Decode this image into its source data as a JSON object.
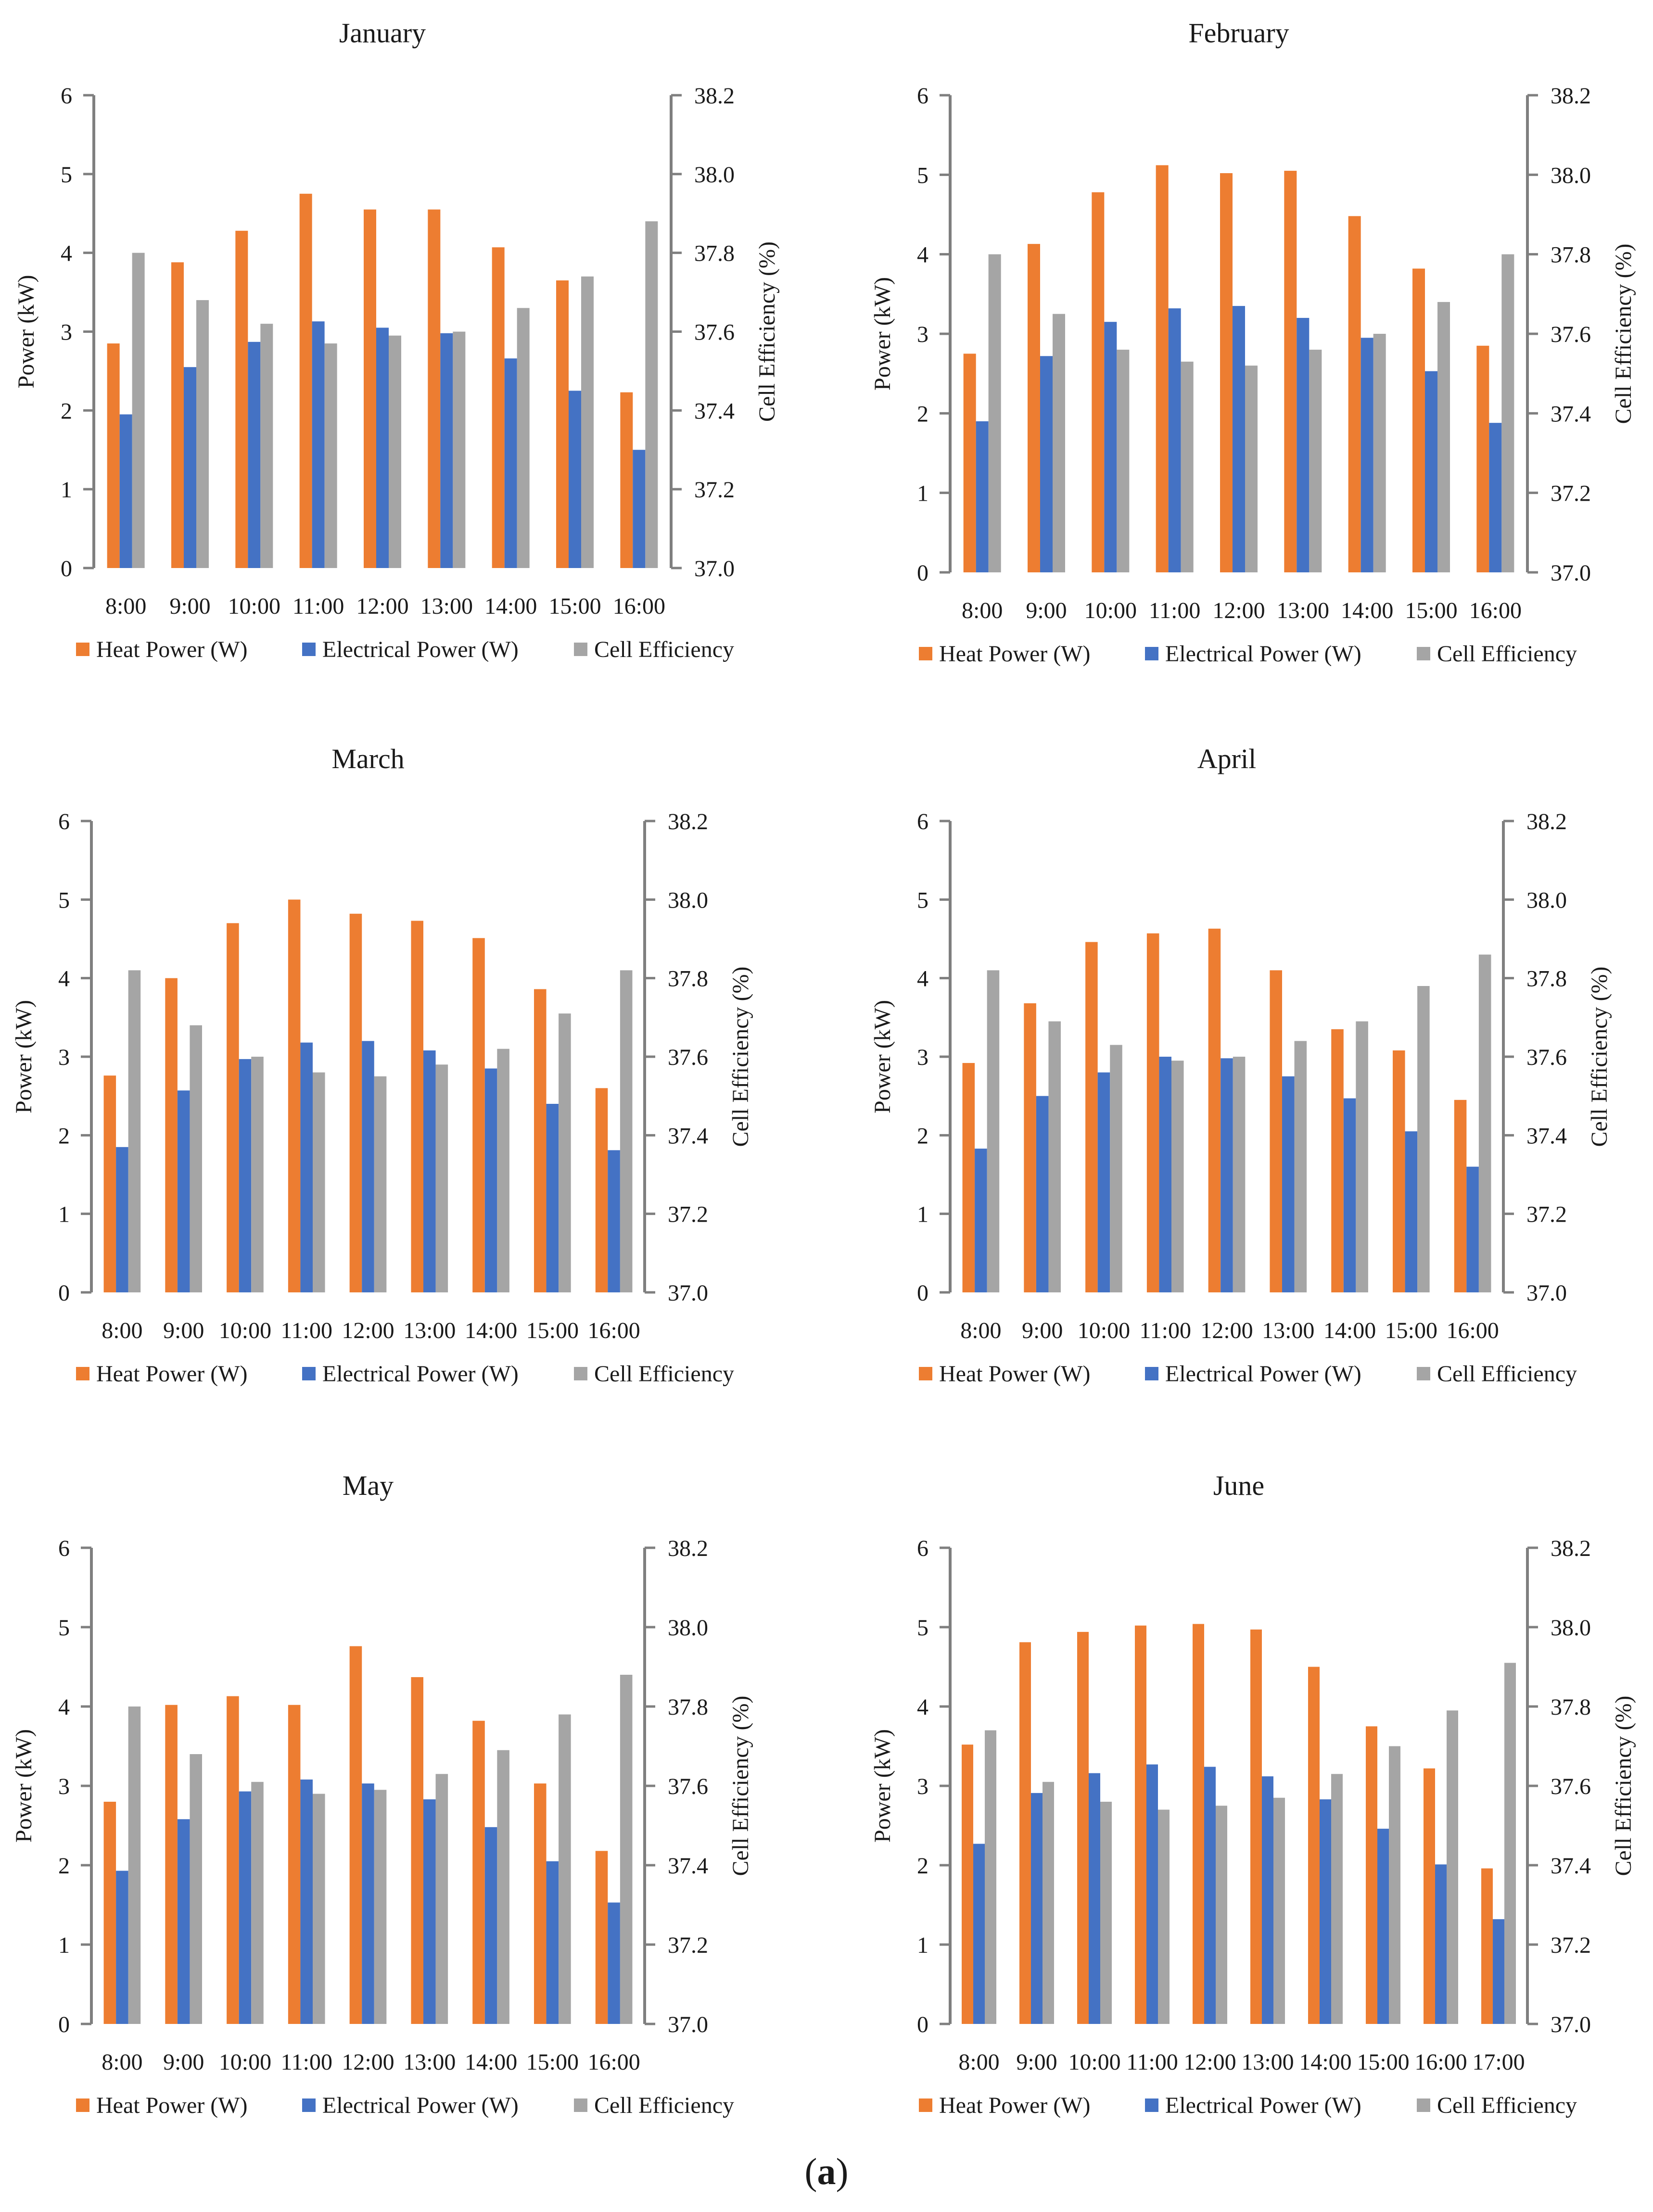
{
  "figure_label": "a",
  "colors": {
    "heat": "#ED7D31",
    "electrical": "#4472C4",
    "efficiency": "#A5A5A5",
    "axis": "#7f7f7f"
  },
  "chart_data": [
    {
      "type": "bar",
      "title": "January",
      "categories": [
        "8:00",
        "9:00",
        "10:00",
        "11:00",
        "12:00",
        "13:00",
        "14:00",
        "15:00",
        "16:00"
      ],
      "series": [
        {
          "name": "Heat  Power (W)",
          "axis": "left",
          "values": [
            2.85,
            3.88,
            4.28,
            4.75,
            4.55,
            4.55,
            4.07,
            3.65,
            2.23
          ]
        },
        {
          "name": "Electrical  Power (W)",
          "axis": "left",
          "values": [
            1.95,
            2.55,
            2.87,
            3.13,
            3.05,
            2.98,
            2.66,
            2.25,
            1.5
          ]
        },
        {
          "name": "Cell Efficiency",
          "axis": "right",
          "values": [
            37.8,
            37.68,
            37.62,
            37.57,
            37.59,
            37.6,
            37.66,
            37.74,
            37.88
          ]
        }
      ],
      "ylabel": "Power (kW)",
      "y2label": "Cell Efficiency (%)",
      "ylim": [
        0,
        6
      ],
      "y2lim": [
        37.0,
        38.2
      ],
      "yticks": [
        "0",
        "1",
        "2",
        "3",
        "4",
        "5",
        "6"
      ],
      "y2ticks": [
        "37.0",
        "37.2",
        "37.4",
        "37.6",
        "37.8",
        "38.0",
        "38.2"
      ]
    },
    {
      "type": "bar",
      "title": "February",
      "categories": [
        "8:00",
        "9:00",
        "10:00",
        "11:00",
        "12:00",
        "13:00",
        "14:00",
        "15:00",
        "16:00"
      ],
      "series": [
        {
          "name": "Heat  Power (W)",
          "axis": "left",
          "values": [
            2.75,
            4.13,
            4.78,
            5.12,
            5.02,
            5.05,
            4.48,
            3.82,
            2.85
          ]
        },
        {
          "name": "Electrical  Power (W)",
          "axis": "left",
          "values": [
            1.9,
            2.72,
            3.15,
            3.32,
            3.35,
            3.2,
            2.95,
            2.53,
            1.88
          ]
        },
        {
          "name": "Cell Efficiency",
          "axis": "right",
          "values": [
            37.8,
            37.65,
            37.56,
            37.53,
            37.52,
            37.56,
            37.6,
            37.68,
            37.8
          ]
        }
      ],
      "ylabel": "Power (kW)",
      "y2label": "Cell Efficiency (%)",
      "ylim": [
        0,
        6
      ],
      "y2lim": [
        37.0,
        38.2
      ],
      "yticks": [
        "0",
        "1",
        "2",
        "3",
        "4",
        "5",
        "6"
      ],
      "y2ticks": [
        "37.0",
        "37.2",
        "37.4",
        "37.6",
        "37.8",
        "38.0",
        "38.2"
      ]
    },
    {
      "type": "bar",
      "title": "March",
      "categories": [
        "8:00",
        "9:00",
        "10:00",
        "11:00",
        "12:00",
        "13:00",
        "14:00",
        "15:00",
        "16:00"
      ],
      "series": [
        {
          "name": "Heat  Power (W)",
          "axis": "left",
          "values": [
            2.76,
            4.0,
            4.7,
            5.0,
            4.82,
            4.73,
            4.51,
            3.86,
            2.6
          ]
        },
        {
          "name": "Electrical  Power (W)",
          "axis": "left",
          "values": [
            1.85,
            2.57,
            2.97,
            3.18,
            3.2,
            3.08,
            2.85,
            2.4,
            1.81
          ]
        },
        {
          "name": "Cell Efficiency",
          "axis": "right",
          "values": [
            37.82,
            37.68,
            37.6,
            37.56,
            37.55,
            37.58,
            37.62,
            37.71,
            37.82
          ]
        }
      ],
      "ylabel": "Power (kW)",
      "y2label": "Cell Efficiency (%)",
      "ylim": [
        0,
        6
      ],
      "y2lim": [
        37.0,
        38.2
      ],
      "yticks": [
        "0",
        "1",
        "2",
        "3",
        "4",
        "5",
        "6"
      ],
      "y2ticks": [
        "37.0",
        "37.2",
        "37.4",
        "37.6",
        "37.8",
        "38.0",
        "38.2"
      ]
    },
    {
      "type": "bar",
      "title": "April",
      "categories": [
        "8:00",
        "9:00",
        "10:00",
        "11:00",
        "12:00",
        "13:00",
        "14:00",
        "15:00",
        "16:00"
      ],
      "series": [
        {
          "name": "Heat  Power (W)",
          "axis": "left",
          "values": [
            2.92,
            3.68,
            4.46,
            4.57,
            4.63,
            4.1,
            3.35,
            3.08,
            2.45
          ]
        },
        {
          "name": "Electrical  Power (W)",
          "axis": "left",
          "values": [
            1.83,
            2.5,
            2.8,
            3.0,
            2.98,
            2.75,
            2.47,
            2.05,
            1.6
          ]
        },
        {
          "name": "Cell Efficiency",
          "axis": "right",
          "values": [
            37.82,
            37.69,
            37.63,
            37.59,
            37.6,
            37.64,
            37.69,
            37.78,
            37.86
          ]
        }
      ],
      "ylabel": "Power (kW)",
      "y2label": "Cell Efficiency (%)",
      "ylim": [
        0,
        6
      ],
      "y2lim": [
        37.0,
        38.2
      ],
      "yticks": [
        "0",
        "1",
        "2",
        "3",
        "4",
        "5",
        "6"
      ],
      "y2ticks": [
        "37.0",
        "37.2",
        "37.4",
        "37.6",
        "37.8",
        "38.0",
        "38.2"
      ]
    },
    {
      "type": "bar",
      "title": "May",
      "categories": [
        "8:00",
        "9:00",
        "10:00",
        "11:00",
        "12:00",
        "13:00",
        "14:00",
        "15:00",
        "16:00"
      ],
      "series": [
        {
          "name": "Heat  Power (W)",
          "axis": "left",
          "values": [
            2.8,
            4.02,
            4.13,
            4.02,
            4.76,
            4.37,
            3.82,
            3.03,
            2.18
          ]
        },
        {
          "name": "Electrical  Power (W)",
          "axis": "left",
          "values": [
            1.93,
            2.58,
            2.93,
            3.08,
            3.03,
            2.83,
            2.48,
            2.05,
            1.53
          ]
        },
        {
          "name": "Cell Efficiency",
          "axis": "right",
          "values": [
            37.8,
            37.68,
            37.61,
            37.58,
            37.59,
            37.63,
            37.69,
            37.78,
            37.88
          ]
        }
      ],
      "ylabel": "Power (kW)",
      "y2label": "Cell Efficiency (%)",
      "ylim": [
        0,
        6
      ],
      "y2lim": [
        37.0,
        38.2
      ],
      "yticks": [
        "0",
        "1",
        "2",
        "3",
        "4",
        "5",
        "6"
      ],
      "y2ticks": [
        "37.0",
        "37.2",
        "37.4",
        "37.6",
        "37.8",
        "38.0",
        "38.2"
      ]
    },
    {
      "type": "bar",
      "title": "June",
      "categories": [
        "8:00",
        "9:00",
        "10:00",
        "11:00",
        "12:00",
        "13:00",
        "14:00",
        "15:00",
        "16:00",
        "17:00"
      ],
      "series": [
        {
          "name": "Heat  Power (W)",
          "axis": "left",
          "values": [
            3.52,
            4.81,
            4.94,
            5.02,
            5.04,
            4.97,
            4.5,
            3.75,
            3.22,
            1.96
          ]
        },
        {
          "name": "Electrical  Power (W)",
          "axis": "left",
          "values": [
            2.27,
            2.91,
            3.16,
            3.27,
            3.24,
            3.12,
            2.83,
            2.46,
            2.01,
            1.32
          ]
        },
        {
          "name": "Cell Efficiency",
          "axis": "right",
          "values": [
            37.74,
            37.61,
            37.56,
            37.54,
            37.55,
            37.57,
            37.63,
            37.7,
            37.79,
            37.91
          ]
        }
      ],
      "ylabel": "Power (kW)",
      "y2label": "Cell Efficiency (%)",
      "ylim": [
        0,
        6
      ],
      "y2lim": [
        37.0,
        38.2
      ],
      "yticks": [
        "0",
        "1",
        "2",
        "3",
        "4",
        "5",
        "6"
      ],
      "y2ticks": [
        "37.0",
        "37.2",
        "37.4",
        "37.6",
        "37.8",
        "38.0",
        "38.2"
      ]
    }
  ]
}
